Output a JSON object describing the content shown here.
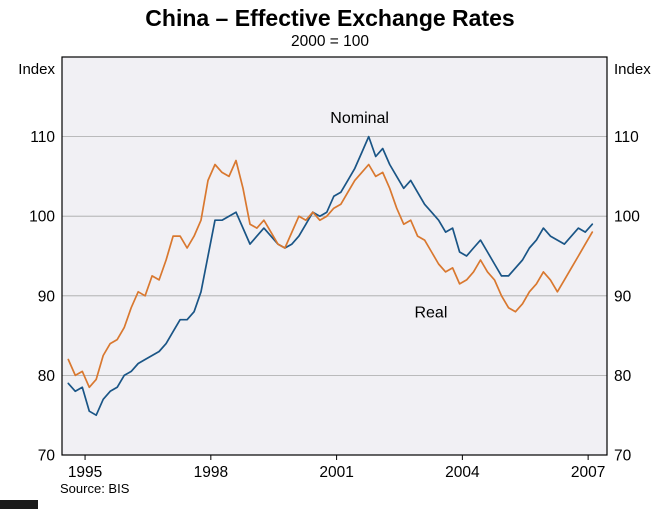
{
  "chart_data": {
    "type": "line",
    "title": "China – Effective Exchange Rates",
    "subtitle": "2000 = 100",
    "source": "Source: BIS",
    "ylabel_left": "Index",
    "ylabel_right": "Index",
    "xlim": [
      1994.45,
      2007.45
    ],
    "ylim": [
      70,
      120
    ],
    "xticks": [
      1995,
      1998,
      2001,
      2004,
      2007
    ],
    "yticks": [
      70,
      80,
      90,
      100,
      110
    ],
    "grid": "horizontal",
    "legend": "inline-labels",
    "colors": {
      "plot_bg": "#f1f0f4",
      "grid": "#a8a8a8",
      "axis": "#000000"
    },
    "x_start": 1994.6,
    "x_step": 0.166667,
    "series": [
      {
        "name": "Nominal",
        "color": "#1a5586",
        "label_pos": {
          "x": 2001.55,
          "y": 111.7
        },
        "values": [
          79,
          78,
          78.5,
          75.5,
          75,
          77,
          78,
          78.5,
          80,
          80.5,
          81.5,
          82,
          82.5,
          83,
          84,
          85.5,
          87,
          87,
          88,
          90.5,
          95,
          99.5,
          99.5,
          100,
          100.5,
          98.5,
          96.5,
          97.5,
          98.5,
          97.5,
          96.5,
          96,
          96.5,
          97.5,
          99,
          100.5,
          100,
          100.5,
          102.5,
          103,
          104.5,
          106,
          108,
          110,
          107.5,
          108.5,
          106.5,
          105,
          103.5,
          104.5,
          103,
          101.5,
          100.5,
          99.5,
          98,
          98.5,
          95.5,
          95,
          96,
          97,
          95.5,
          94,
          92.5,
          92.5,
          93.5,
          94.5,
          96,
          97,
          98.5,
          97.5,
          97,
          96.5,
          97.5,
          98.5,
          98,
          99
        ]
      },
      {
        "name": "Real",
        "color": "#d9782f",
        "label_pos": {
          "x": 2003.25,
          "y": 87.3
        },
        "values": [
          82,
          80,
          80.5,
          78.5,
          79.5,
          82.5,
          84,
          84.5,
          86,
          88.5,
          90.5,
          90,
          92.5,
          92,
          94.5,
          97.5,
          97.5,
          96,
          97.5,
          99.5,
          104.5,
          106.5,
          105.5,
          105,
          107,
          103.5,
          99,
          98.5,
          99.5,
          98,
          96.5,
          96,
          98,
          100,
          99.5,
          100.5,
          99.5,
          100,
          101,
          101.5,
          103,
          104.5,
          105.5,
          106.5,
          105,
          105.5,
          103.5,
          101,
          99,
          99.5,
          97.5,
          97,
          95.5,
          94,
          93,
          93.5,
          91.5,
          92,
          93,
          94.5,
          93,
          92,
          90,
          88.5,
          88,
          89,
          90.5,
          91.5,
          93,
          92,
          90.5,
          92,
          93.5,
          95,
          96.5,
          98
        ]
      }
    ]
  }
}
